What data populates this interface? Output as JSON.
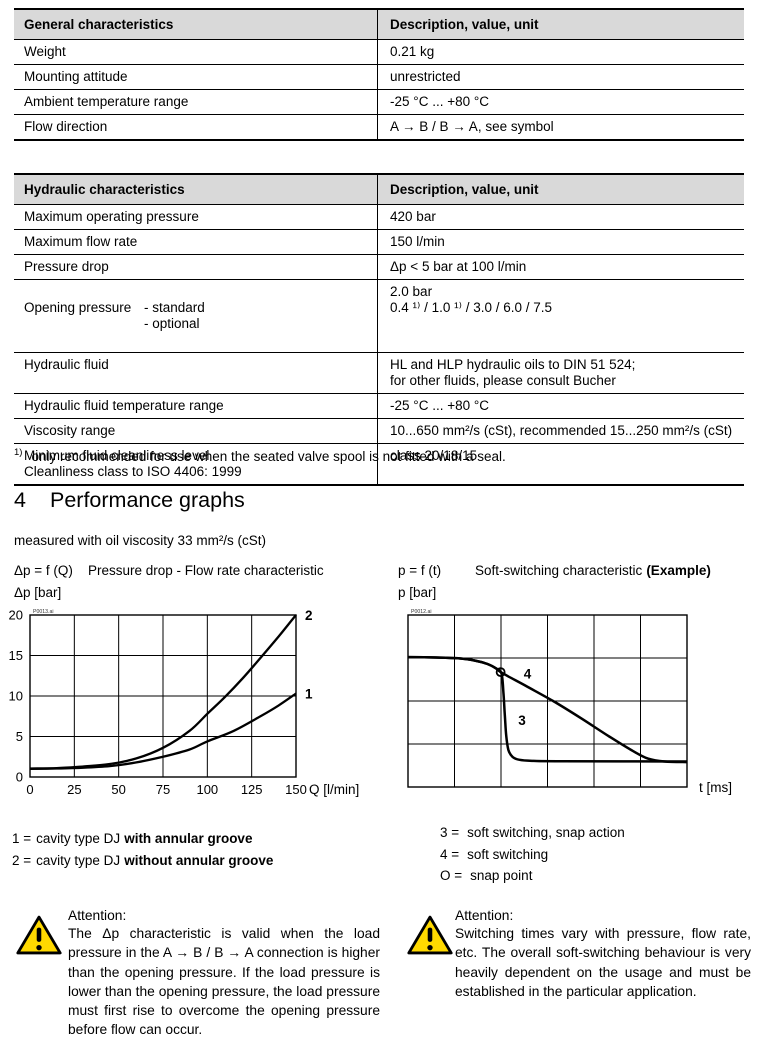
{
  "colors": {
    "header_bg": "#D9D9D9",
    "warning_yellow": "#FFD900",
    "line": "#000000"
  },
  "tables": {
    "general": {
      "header": [
        "General characteristics",
        "Description, value, unit"
      ],
      "rows": [
        {
          "label": "Weight",
          "value": "0.21 kg"
        },
        {
          "label": "Mounting attitude",
          "value": "unrestricted"
        },
        {
          "label": "Ambient temperature range",
          "value": "-25 °C ... +80 °C"
        },
        {
          "label": "Flow direction",
          "value": "A → B  /  B → A,  see symbol"
        }
      ]
    },
    "hydraulic": {
      "header": [
        "Hydraulic characteristics",
        "Description, value, unit"
      ],
      "rows": [
        {
          "label": "Maximum operating pressure",
          "value": "420 bar"
        },
        {
          "label": "Maximum flow rate",
          "value": "150 l/min"
        },
        {
          "label": "Pressure drop",
          "value": "Δp < 5 bar at 100 l/min"
        },
        {
          "label": "Opening pressure",
          "sublabels": "- standard\n- optional",
          "value": "2.0 bar\n0.4 ¹⁾ / 1.0 ¹⁾ / 3.0 / 6.0 / 7.5"
        },
        {
          "label": "Hydraulic fluid",
          "value": "HL and HLP hydraulic oils to DIN 51 524;\nfor other fluids, please consult Bucher"
        },
        {
          "label": "Hydraulic fluid temperature range",
          "value": "-25 °C ... +80 °C"
        },
        {
          "label": "Viscosity range",
          "value": "10...650 mm²/s (cSt),  recommended 15...250 mm²/s (cSt)"
        },
        {
          "label": "Minimum fluid cleanliness level\nCleanliness class to ISO 4406: 1999",
          "value": "class 20/18/15"
        }
      ]
    }
  },
  "footnote": {
    "marker": "1)",
    "text": "only recommended for use when the seated valve spool is not fitted with a seal."
  },
  "section": {
    "number": "4",
    "title": "Performance graphs",
    "note": "measured with oil viscosity 33 mm²/s (cSt)"
  },
  "chart_data": [
    {
      "type": "line",
      "id": "pressure-drop",
      "formula": "Δp = f (Q)",
      "title": "Pressure drop - Flow rate characteristic",
      "ylabel": "Δp [bar]",
      "xlabel": "Q [l/min]",
      "watermark": "P0013.ai",
      "xlim": [
        0,
        150
      ],
      "ylim": [
        0,
        20
      ],
      "xticks": [
        0,
        25,
        50,
        75,
        100,
        125,
        150
      ],
      "yticks": [
        0,
        5,
        10,
        15,
        20
      ],
      "grid": true,
      "legend_position": "curve-end-labels",
      "series": [
        {
          "name": "1",
          "label": "cavity type DJ with annular groove",
          "points": [
            [
              0,
              1.0
            ],
            [
              15,
              1.05
            ],
            [
              30,
              1.15
            ],
            [
              45,
              1.35
            ],
            [
              60,
              1.8
            ],
            [
              75,
              2.5
            ],
            [
              90,
              3.4
            ],
            [
              100,
              4.4
            ],
            [
              115,
              5.7
            ],
            [
              130,
              7.5
            ],
            [
              140,
              8.8
            ],
            [
              150,
              10.3
            ]
          ]
        },
        {
          "name": "2",
          "label": "cavity type DJ without annular groove",
          "points": [
            [
              0,
              1.05
            ],
            [
              15,
              1.1
            ],
            [
              30,
              1.3
            ],
            [
              45,
              1.6
            ],
            [
              60,
              2.3
            ],
            [
              75,
              3.6
            ],
            [
              90,
              5.7
            ],
            [
              100,
              7.8
            ],
            [
              110,
              9.9
            ],
            [
              120,
              12.2
            ],
            [
              130,
              14.7
            ],
            [
              140,
              17.3
            ],
            [
              150,
              20.0
            ]
          ]
        }
      ]
    },
    {
      "type": "line",
      "id": "soft-switching",
      "formula": "p = f (t)",
      "title": "Soft-switching characteristic",
      "title_suffix": "(Example)",
      "ylabel": "p [bar]",
      "xlabel": "t [ms]",
      "watermark": "P0012.ai",
      "grid_cols": 6,
      "grid_rows": 4,
      "axis_numbers": false,
      "series": [
        {
          "name": "4",
          "label": "soft switching",
          "points_norm": [
            [
              0,
              0.755
            ],
            [
              0.1,
              0.753
            ],
            [
              0.18,
              0.748
            ],
            [
              0.24,
              0.735
            ],
            [
              0.285,
              0.715
            ],
            [
              0.315,
              0.69
            ],
            [
              0.335,
              0.665
            ],
            [
              0.42,
              0.59
            ],
            [
              0.52,
              0.5
            ],
            [
              0.62,
              0.4
            ],
            [
              0.72,
              0.295
            ],
            [
              0.8,
              0.215
            ],
            [
              0.86,
              0.165
            ],
            [
              0.92,
              0.148
            ],
            [
              1.0,
              0.145
            ]
          ]
        },
        {
          "name": "3",
          "label": "soft switching, snap action",
          "points_norm": [
            [
              0,
              0.755
            ],
            [
              0.1,
              0.753
            ],
            [
              0.18,
              0.748
            ],
            [
              0.24,
              0.735
            ],
            [
              0.285,
              0.715
            ],
            [
              0.315,
              0.69
            ],
            [
              0.335,
              0.66
            ],
            [
              0.342,
              0.55
            ],
            [
              0.347,
              0.42
            ],
            [
              0.352,
              0.3
            ],
            [
              0.36,
              0.215
            ],
            [
              0.375,
              0.175
            ],
            [
              0.4,
              0.158
            ],
            [
              0.45,
              0.152
            ],
            [
              0.55,
              0.15
            ],
            [
              1.0,
              0.148
            ]
          ]
        }
      ],
      "snap_point": [
        0.332,
        0.668
      ],
      "curve_labels": [
        {
          "text": "4",
          "pos": [
            0.415,
            0.63
          ]
        },
        {
          "text": "3",
          "pos": [
            0.395,
            0.36
          ]
        }
      ]
    }
  ],
  "legends": {
    "left": [
      {
        "key": "1 =",
        "pre": "cavity type DJ",
        "bold": "with annular groove"
      },
      {
        "key": "2 =",
        "pre": "cavity type DJ",
        "bold": "without annular groove"
      }
    ],
    "right": [
      {
        "key": "3 =",
        "text": "soft switching, snap action"
      },
      {
        "key": "4 =",
        "text": "soft switching"
      },
      {
        "key": "O =",
        "text": "snap point"
      }
    ]
  },
  "attention_left": {
    "title": "Attention:",
    "text": "The Δp characteristic is valid when the load pressure in the A → B / B → A connection is higher than the opening pressure. If the load pressure is lower than the opening pressure, the load pressure must first rise to overcome the opening pressure before flow can occur."
  },
  "attention_right": {
    "title": "Attention:",
    "text": "Switching times vary with pressure, flow rate, etc. The overall soft-switching behaviour is very heavily dependent on the usage and must be established in the particular application."
  }
}
